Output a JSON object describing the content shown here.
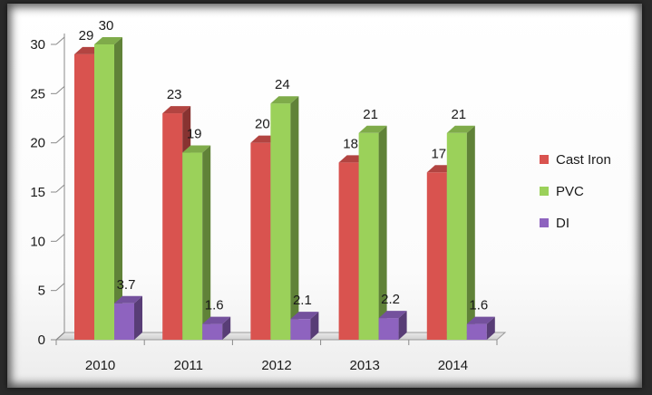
{
  "chart_data": {
    "type": "bar",
    "categories": [
      "2010",
      "2011",
      "2012",
      "2013",
      "2014"
    ],
    "series": [
      {
        "name": "Cast Iron",
        "values": [
          29,
          23,
          20,
          18,
          17
        ],
        "color": "#d9534f"
      },
      {
        "name": "PVC",
        "values": [
          30,
          19,
          24,
          21,
          21
        ],
        "color": "#9bd15a"
      },
      {
        "name": "DI",
        "values": [
          3.7,
          1.6,
          2.1,
          2.2,
          1.6
        ],
        "color": "#8e63bf"
      }
    ],
    "data_labels": [
      [
        "29",
        "23",
        "20",
        "18",
        "17"
      ],
      [
        "30",
        "19",
        "24",
        "21",
        "21"
      ],
      [
        "3.7",
        "1.6",
        "2.1",
        "2.2",
        "1.6"
      ]
    ],
    "yticks": [
      "0",
      "5",
      "10",
      "15",
      "20",
      "25",
      "30"
    ],
    "ylim": [
      0,
      30
    ],
    "grid": false,
    "legend_position": "right",
    "style": "3d-clustered-column"
  }
}
